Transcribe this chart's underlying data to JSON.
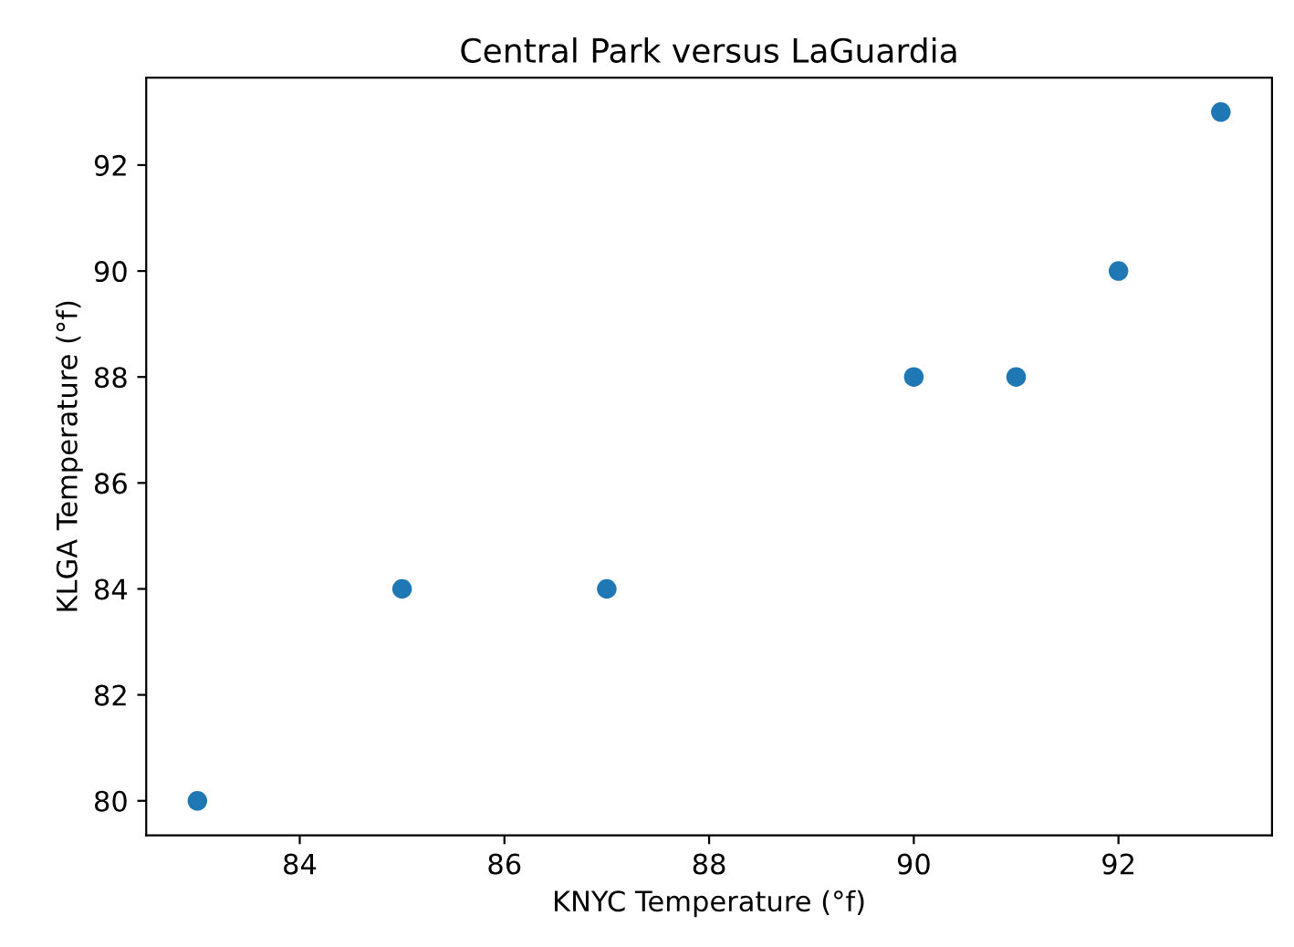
{
  "chart_data": {
    "type": "scatter",
    "title": "Central Park versus LaGuardia",
    "xlabel": "KNYC Temperature (°f)",
    "ylabel": "KLGA Temperature (°f)",
    "x": [
      83,
      85,
      87,
      90,
      91,
      92,
      93
    ],
    "series": [
      {
        "color": "#1f77b4",
        "values": [
          80,
          84,
          84,
          88,
          88,
          90,
          93
        ]
      }
    ],
    "xlim": [
      82.5,
      93.5
    ],
    "xticks": [
      84,
      86,
      88,
      90,
      92
    ],
    "ylim": [
      79.35,
      93.65
    ],
    "yticks": [
      80,
      82,
      84,
      86,
      88,
      90,
      92
    ],
    "marker": "circle",
    "grid": false,
    "legend": false
  }
}
